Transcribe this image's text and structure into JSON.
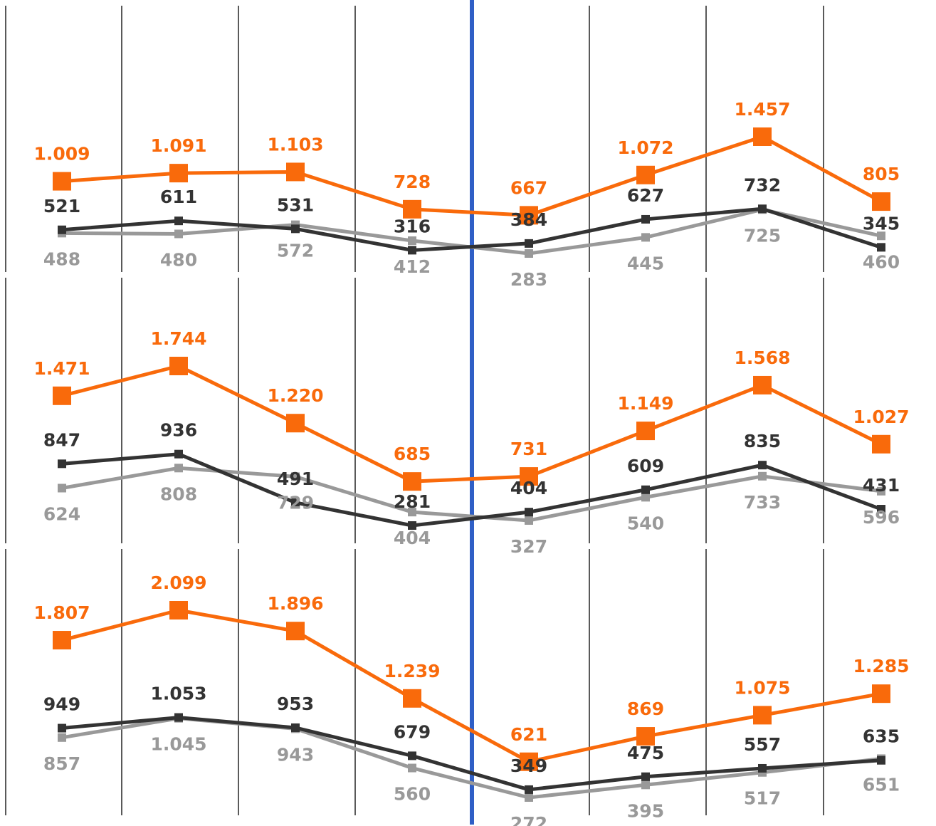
{
  "colors": {
    "orange": "#F96A0B",
    "dark": "#333333",
    "gray": "#999999",
    "divider": "#2F5FC6",
    "grid": "#000000"
  },
  "chart_data": [
    {
      "type": "line",
      "series": [
        {
          "color": "orange",
          "marker": "square-large",
          "values": [
            1009,
            1091,
            1103,
            728,
            667,
            1072,
            1457,
            805
          ],
          "labels": [
            "1.009",
            "1.091",
            "1.103",
            "728",
            "667",
            "1.072",
            "1.457",
            "805"
          ]
        },
        {
          "color": "dark",
          "marker": "square-small",
          "values": [
            521,
            611,
            531,
            316,
            384,
            627,
            732,
            345
          ],
          "labels": [
            "521",
            "611",
            "531",
            "316",
            "384",
            "627",
            "732",
            "345"
          ]
        },
        {
          "color": "gray",
          "marker": "square-small",
          "values": [
            488,
            480,
            572,
            412,
            283,
            445,
            725,
            460
          ],
          "labels": [
            "488",
            "480",
            "572",
            "412",
            "283",
            "445",
            "725",
            "460"
          ]
        }
      ]
    },
    {
      "type": "line",
      "series": [
        {
          "color": "orange",
          "marker": "square-large",
          "values": [
            1471,
            1744,
            1220,
            685,
            731,
            1149,
            1568,
            1027
          ],
          "labels": [
            "1.471",
            "1.744",
            "1.220",
            "685",
            "731",
            "1.149",
            "1.568",
            "1.027"
          ]
        },
        {
          "color": "dark",
          "marker": "square-small",
          "values": [
            847,
            936,
            491,
            281,
            404,
            609,
            835,
            431
          ],
          "labels": [
            "847",
            "936",
            "491",
            "281",
            "404",
            "609",
            "835",
            "431"
          ]
        },
        {
          "color": "gray",
          "marker": "square-small",
          "values": [
            624,
            808,
            729,
            404,
            327,
            540,
            733,
            596
          ],
          "labels": [
            "624",
            "808",
            "729",
            "404",
            "327",
            "540",
            "733",
            "596"
          ]
        }
      ]
    },
    {
      "type": "line",
      "series": [
        {
          "color": "orange",
          "marker": "square-large",
          "values": [
            1807,
            2099,
            1896,
            1239,
            621,
            869,
            1075,
            1285
          ],
          "labels": [
            "1.807",
            "2.099",
            "1.896",
            "1.239",
            "621",
            "869",
            "1.075",
            "1.285"
          ]
        },
        {
          "color": "dark",
          "marker": "square-small",
          "values": [
            949,
            1053,
            953,
            679,
            349,
            475,
            557,
            635
          ],
          "labels": [
            "949",
            "1.053",
            "953",
            "679",
            "349",
            "475",
            "557",
            "635"
          ]
        },
        {
          "color": "gray",
          "marker": "square-small",
          "values": [
            857,
            1045,
            943,
            560,
            272,
            395,
            517,
            651
          ],
          "labels": [
            "857",
            "1.045",
            "943",
            "560",
            "272",
            "395",
            "517",
            "651"
          ]
        }
      ]
    }
  ]
}
